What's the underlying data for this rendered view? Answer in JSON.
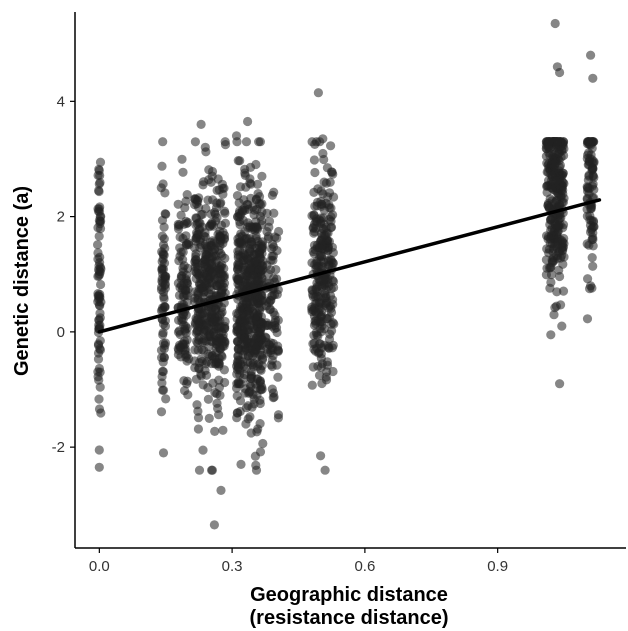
{
  "chart_data": {
    "type": "scatter",
    "title": "",
    "xlabel_lines": [
      "Geographic distance",
      "(resistance distance)"
    ],
    "ylabel": "Genetic distance (a)",
    "xlim": [
      -0.055,
      1.19
    ],
    "ylim": [
      -3.75,
      5.55
    ],
    "xticks": [
      0.0,
      0.3,
      0.6,
      0.9
    ],
    "xtick_labels": [
      "0.0",
      "0.3",
      "0.6",
      "0.9"
    ],
    "yticks": [
      -2,
      0,
      2,
      4
    ],
    "ytick_labels": [
      "-2",
      "0",
      "2",
      "4"
    ],
    "grid": false,
    "legend": "none",
    "point_color": "#222222",
    "point_opacity": 0.55,
    "line_color": "#000000",
    "regression_line": {
      "x": [
        0.0,
        1.13
      ],
      "y": [
        0.0,
        2.29
      ]
    },
    "point_groups": [
      {
        "x_center": 0.0,
        "x_spread": 0.004,
        "y_mean": 0.6,
        "y_sd": 1.1,
        "count": 75,
        "extra_points": [
          [
            0.0,
            2.8
          ],
          [
            0.0,
            -2.35
          ],
          [
            0.0,
            -2.05
          ]
        ]
      },
      {
        "x_center": 0.145,
        "x_spread": 0.005,
        "y_mean": 0.7,
        "y_sd": 1.0,
        "count": 70,
        "extra_points": [
          [
            0.14,
            2.5
          ],
          [
            0.145,
            -2.1
          ]
        ]
      },
      {
        "x_center": 0.19,
        "x_spread": 0.012,
        "y_mean": 0.75,
        "y_sd": 0.95,
        "count": 110,
        "extra_points": []
      },
      {
        "x_center": 0.25,
        "x_spread": 0.035,
        "y_mean": 0.65,
        "y_sd": 0.95,
        "count": 430,
        "extra_points": [
          [
            0.26,
            -3.35
          ],
          [
            0.275,
            -2.75
          ],
          [
            0.23,
            3.6
          ],
          [
            0.285,
            3.25
          ]
        ]
      },
      {
        "x_center": 0.34,
        "x_spread": 0.03,
        "y_mean": 0.6,
        "y_sd": 0.95,
        "count": 520,
        "extra_points": [
          [
            0.335,
            3.65
          ],
          [
            0.31,
            3.4
          ],
          [
            0.36,
            3.3
          ],
          [
            0.32,
            -2.3
          ]
        ]
      },
      {
        "x_center": 0.39,
        "x_spread": 0.015,
        "y_mean": 0.6,
        "y_sd": 0.9,
        "count": 90,
        "extra_points": []
      },
      {
        "x_center": 0.505,
        "x_spread": 0.025,
        "y_mean": 0.95,
        "y_sd": 0.95,
        "count": 260,
        "extra_points": [
          [
            0.495,
            4.15
          ],
          [
            0.505,
            3.35
          ],
          [
            0.51,
            -2.4
          ],
          [
            0.5,
            -2.15
          ]
        ]
      },
      {
        "x_center": 1.03,
        "x_spread": 0.02,
        "y_mean": 2.35,
        "y_sd": 0.85,
        "count": 290,
        "extra_points": [
          [
            1.03,
            5.35
          ],
          [
            1.035,
            4.6
          ],
          [
            1.04,
            4.5
          ],
          [
            1.04,
            -0.9
          ],
          [
            1.02,
            -0.05
          ],
          [
            1.045,
            0.1
          ]
        ]
      },
      {
        "x_center": 1.11,
        "x_spread": 0.008,
        "y_mean": 2.55,
        "y_sd": 0.85,
        "count": 90,
        "extra_points": [
          [
            1.11,
            4.8
          ],
          [
            1.115,
            4.4
          ],
          [
            1.11,
            0.8
          ]
        ]
      }
    ]
  }
}
